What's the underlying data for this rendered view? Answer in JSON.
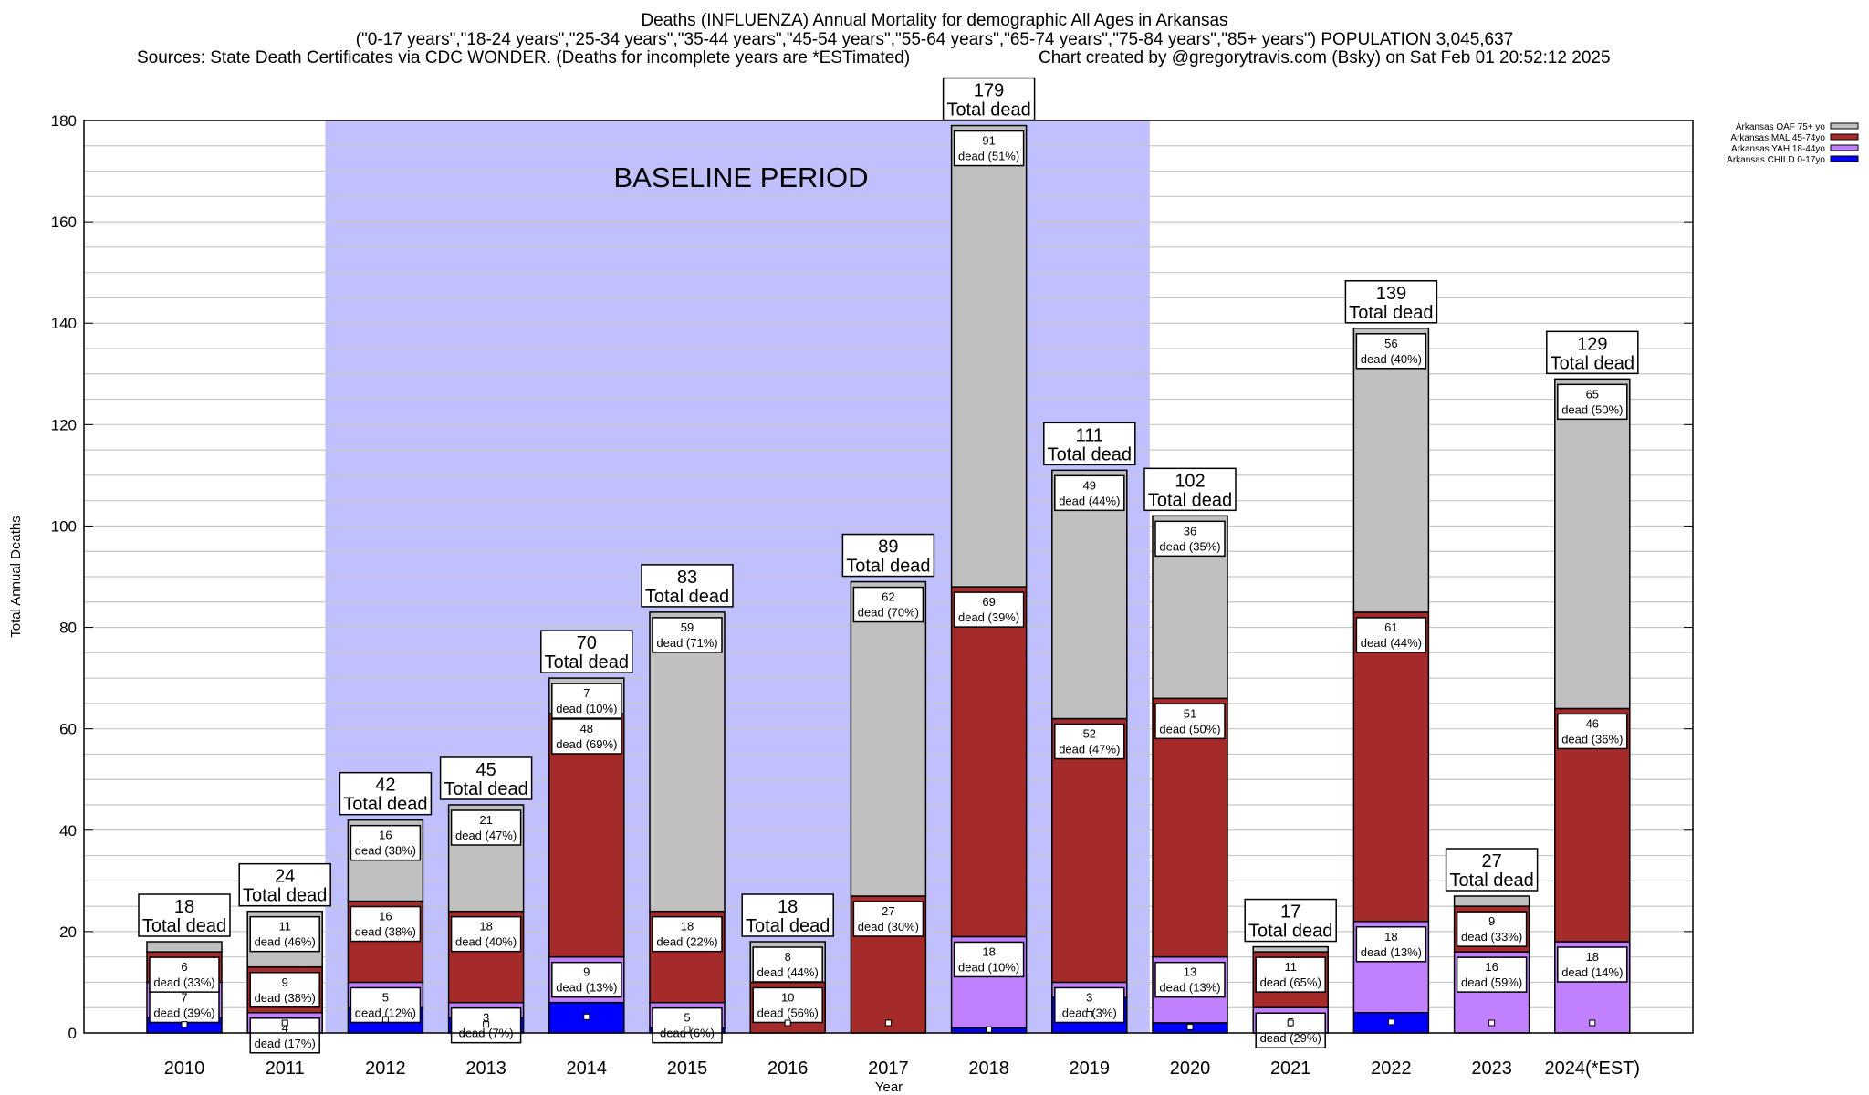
{
  "header": {
    "title": "Deaths (INFLUENZA) Annual Mortality for demographic All Ages in Arkansas",
    "subtitle": "(\"0-17 years\",\"18-24 years\",\"25-34 years\",\"35-44 years\",\"45-54 years\",\"55-64 years\",\"65-74 years\",\"75-84 years\",\"85+ years\") POPULATION 3,045,637",
    "sources": "Sources: State Death Certificates via CDC WONDER. (Deaths for incomplete years are *ESTimated)",
    "credit": "Chart created by @gregorytravis.com (Bsky) on Sat Feb 01 20:52:12 2025"
  },
  "chart_data": {
    "type": "bar",
    "stacked": true,
    "xlabel": "Year",
    "ylabel": "Total Annual Deaths",
    "ylim": [
      0,
      180
    ],
    "yticks": [
      0,
      20,
      40,
      60,
      80,
      100,
      120,
      140,
      160,
      180
    ],
    "grid": true,
    "legend": "top-right",
    "annotation": "BASELINE PERIOD",
    "baseline_range": [
      "2012",
      "2019"
    ],
    "total_label": "Total dead",
    "segment_label": "dead",
    "categories": [
      "2010",
      "2011",
      "2012",
      "2013",
      "2014",
      "2015",
      "2016",
      "2017",
      "2018",
      "2019",
      "2020",
      "2021",
      "2022",
      "2023",
      "2024(*EST)"
    ],
    "totals": [
      18,
      24,
      42,
      45,
      70,
      83,
      18,
      89,
      179,
      111,
      102,
      17,
      139,
      27,
      129
    ],
    "series": [
      {
        "name": "Arkansas CHILD 0-17yo",
        "color": "#0000ff",
        "values": [
          3,
          0,
          5,
          3,
          6,
          1,
          0,
          0,
          1,
          7,
          2,
          0,
          4,
          0,
          0
        ],
        "labels": [
          null,
          null,
          null,
          null,
          null,
          null,
          null,
          null,
          null,
          null,
          null,
          null,
          null,
          null,
          null
        ]
      },
      {
        "name": "Arkansas YAH 18-44yo",
        "color": "#c080ff",
        "values": [
          7,
          4,
          5,
          3,
          9,
          5,
          0,
          0,
          18,
          3,
          13,
          5,
          18,
          16,
          18
        ],
        "labels": [
          "39%",
          "17%",
          "12%",
          "7%",
          "13%",
          "6%",
          null,
          null,
          "10%",
          "3%",
          "13%",
          "29%",
          "13%",
          "59%",
          "14%"
        ]
      },
      {
        "name": "Arkansas MAL 45-74yo",
        "color": "#a52a2a",
        "values": [
          6,
          9,
          16,
          18,
          48,
          18,
          10,
          27,
          69,
          52,
          51,
          11,
          61,
          9,
          46
        ],
        "labels": [
          "33%",
          "38%",
          "38%",
          "40%",
          "69%",
          "22%",
          "56%",
          "30%",
          "39%",
          "47%",
          "50%",
          "65%",
          "44%",
          "33%",
          "36%"
        ]
      },
      {
        "name": "Arkansas OAF 75+ yo",
        "color": "#c0c0c0",
        "values": [
          2,
          11,
          16,
          21,
          7,
          59,
          8,
          62,
          91,
          49,
          36,
          1,
          56,
          2,
          65
        ],
        "labels": [
          null,
          "46%",
          "38%",
          "47%",
          "10%",
          "71%",
          "44%",
          "70%",
          "51%",
          "44%",
          "35%",
          null,
          "40%",
          null,
          "50%"
        ]
      }
    ]
  }
}
